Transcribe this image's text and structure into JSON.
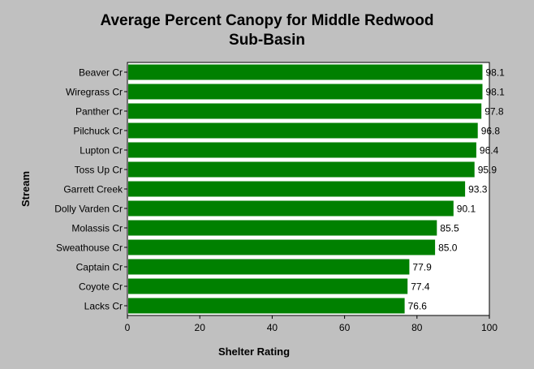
{
  "chart_data": {
    "type": "bar",
    "orientation": "horizontal",
    "title": "Average Percent Canopy for Middle Redwood",
    "subtitle": "Sub-Basin",
    "xlabel": "Shelter Rating",
    "ylabel": "Stream",
    "xlim": [
      0,
      100
    ],
    "xticks": [
      0,
      20,
      40,
      60,
      80,
      100
    ],
    "grid": false,
    "legend": "none",
    "bar_color": "#008000",
    "categories": [
      "Beaver Cr",
      "Wiregrass Cr",
      "Panther Cr",
      "Pilchuck Cr",
      "Lupton Cr",
      "Toss Up Cr",
      "Garrett Creek",
      "Dolly Varden Cr",
      "Molassis Cr",
      "Sweathouse Cr",
      "Captain Cr",
      "Coyote Cr",
      "Lacks Cr"
    ],
    "values": [
      98.1,
      98.1,
      97.8,
      96.8,
      96.4,
      95.9,
      93.3,
      90.1,
      85.5,
      85.0,
      77.9,
      77.4,
      76.6
    ],
    "value_labels": [
      "98.1",
      "98.1",
      "97.8",
      "96.8",
      "96.4",
      "95.9",
      "93.3",
      "90.1",
      "85.5",
      "85.0",
      "77.9",
      "77.4",
      "76.6"
    ]
  }
}
